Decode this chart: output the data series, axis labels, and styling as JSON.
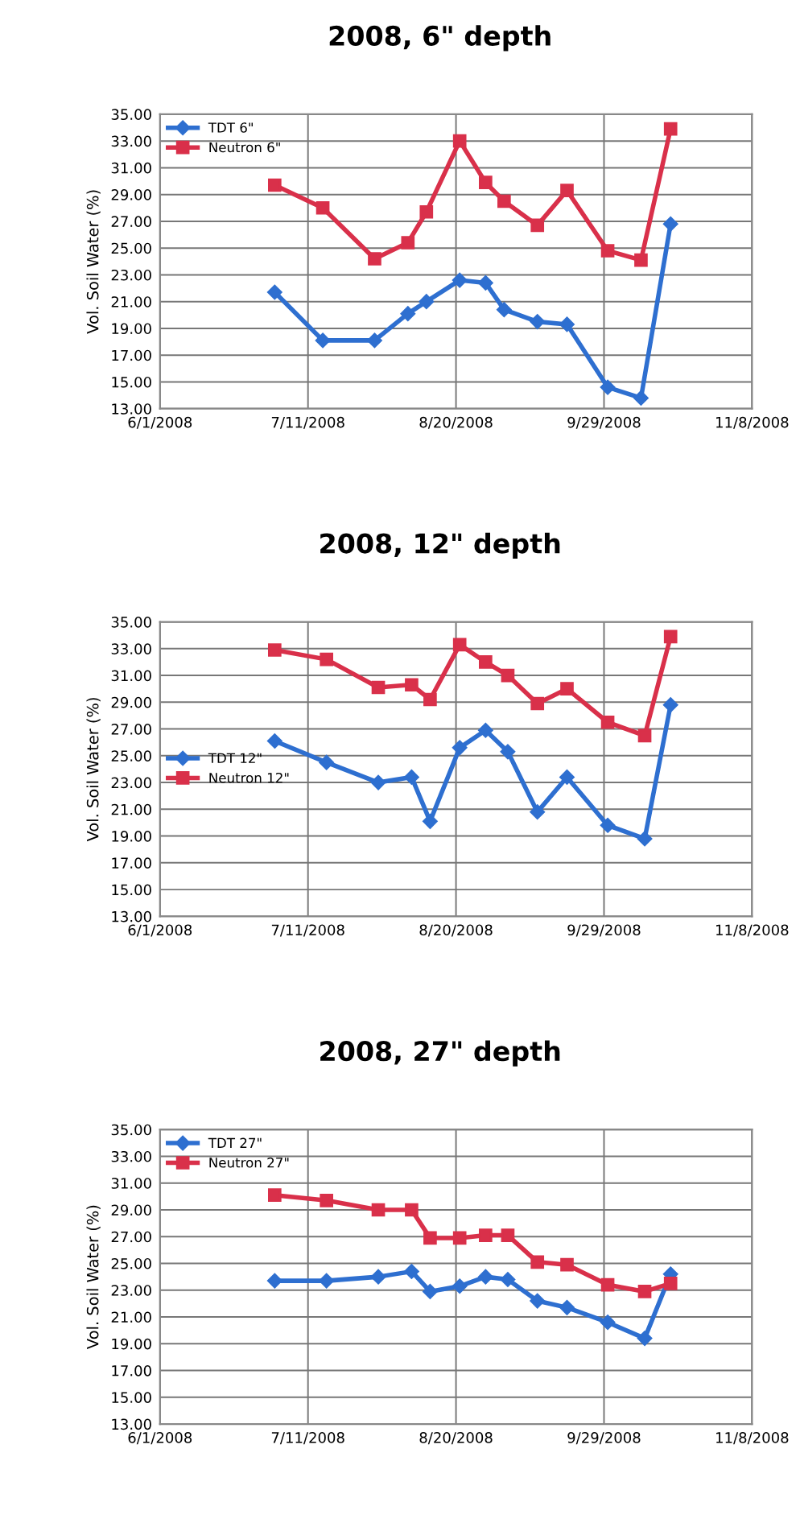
{
  "chart_data": [
    {
      "type": "line",
      "title": "2008, 6\" depth",
      "ylabel": "Vol. Soil Water (%)",
      "x": [
        "2008-07-02",
        "2008-07-15",
        "2008-07-29",
        "2008-08-07",
        "2008-08-12",
        "2008-08-21",
        "2008-08-28",
        "2008-09-02",
        "2008-09-11",
        "2008-09-19",
        "2008-09-30",
        "2008-10-09",
        "2008-10-17"
      ],
      "series": [
        {
          "name": "TDT 6\"",
          "color": "#2e6fd0",
          "marker": "diamond",
          "values": [
            21.7,
            18.1,
            18.1,
            20.1,
            21.0,
            22.6,
            22.4,
            20.4,
            19.5,
            19.3,
            14.6,
            13.8,
            26.8
          ]
        },
        {
          "name": "Neutron 6\"",
          "color": "#d9304a",
          "marker": "square",
          "values": [
            29.7,
            28.0,
            24.2,
            25.4,
            27.7,
            33.0,
            29.9,
            28.5,
            26.7,
            29.3,
            24.8,
            24.1,
            33.9
          ]
        }
      ],
      "xlim": [
        "2008-06-01",
        "2008-11-08"
      ],
      "xticks": [
        {
          "value": "2008-06-01",
          "label": "6/1/2008"
        },
        {
          "value": "2008-07-11",
          "label": "7/11/2008"
        },
        {
          "value": "2008-08-20",
          "label": "8/20/2008"
        },
        {
          "value": "2008-09-29",
          "label": "9/29/2008"
        },
        {
          "value": "2008-11-08",
          "label": "11/8/2008"
        }
      ],
      "ylim": [
        13,
        35
      ],
      "yticks": [
        {
          "value": 13,
          "label": "13.00"
        },
        {
          "value": 15,
          "label": "15.00"
        },
        {
          "value": 17,
          "label": "17.00"
        },
        {
          "value": 19,
          "label": "19.00"
        },
        {
          "value": 21,
          "label": "21.00"
        },
        {
          "value": 23,
          "label": "23.00"
        },
        {
          "value": 25,
          "label": "25.00"
        },
        {
          "value": 27,
          "label": "27.00"
        },
        {
          "value": 29,
          "label": "29.00"
        },
        {
          "value": 31,
          "label": "31.00"
        },
        {
          "value": 33,
          "label": "33.00"
        },
        {
          "value": 35,
          "label": "35.00"
        }
      ],
      "grid": true,
      "legend": "top left",
      "line_style": "solid"
    },
    {
      "type": "line",
      "title": "2008, 12\" depth",
      "ylabel": "Vol. Soil Water (%)",
      "x": [
        "2008-07-02",
        "2008-07-16",
        "2008-07-30",
        "2008-08-08",
        "2008-08-13",
        "2008-08-21",
        "2008-08-28",
        "2008-09-03",
        "2008-09-11",
        "2008-09-19",
        "2008-09-30",
        "2008-10-10",
        "2008-10-17"
      ],
      "series": [
        {
          "name": "TDT 12\"",
          "color": "#2e6fd0",
          "marker": "diamond",
          "values": [
            26.1,
            24.5,
            23.0,
            23.4,
            20.1,
            25.6,
            26.9,
            25.3,
            20.8,
            23.4,
            19.8,
            18.8,
            28.8
          ]
        },
        {
          "name": "Neutron 12\"",
          "color": "#d9304a",
          "marker": "square",
          "values": [
            32.9,
            32.2,
            30.1,
            30.3,
            29.2,
            33.3,
            32.0,
            31.0,
            28.9,
            30.0,
            27.5,
            26.5,
            33.9
          ]
        }
      ],
      "xlim": [
        "2008-06-01",
        "2008-11-08"
      ],
      "xticks": [
        {
          "value": "2008-06-01",
          "label": "6/1/2008"
        },
        {
          "value": "2008-07-11",
          "label": "7/11/2008"
        },
        {
          "value": "2008-08-20",
          "label": "8/20/2008"
        },
        {
          "value": "2008-09-29",
          "label": "9/29/2008"
        },
        {
          "value": "2008-11-08",
          "label": "11/8/2008"
        }
      ],
      "ylim": [
        13,
        35
      ],
      "yticks": [
        {
          "value": 13,
          "label": "13.00"
        },
        {
          "value": 15,
          "label": "15.00"
        },
        {
          "value": 17,
          "label": "17.00"
        },
        {
          "value": 19,
          "label": "19.00"
        },
        {
          "value": 21,
          "label": "21.00"
        },
        {
          "value": 23,
          "label": "23.00"
        },
        {
          "value": 25,
          "label": "25.00"
        },
        {
          "value": 27,
          "label": "27.00"
        },
        {
          "value": 29,
          "label": "29.00"
        },
        {
          "value": 31,
          "label": "31.00"
        },
        {
          "value": 33,
          "label": "33.00"
        },
        {
          "value": 35,
          "label": "35.00"
        }
      ],
      "grid": true,
      "legend": "left",
      "line_style": "solid"
    },
    {
      "type": "line",
      "title": "2008, 27\" depth",
      "ylabel": "Vol. Soil Water (%)",
      "x": [
        "2008-07-02",
        "2008-07-16",
        "2008-07-30",
        "2008-08-08",
        "2008-08-13",
        "2008-08-21",
        "2008-08-28",
        "2008-09-03",
        "2008-09-11",
        "2008-09-19",
        "2008-09-30",
        "2008-10-10",
        "2008-10-17"
      ],
      "series": [
        {
          "name": "TDT 27\"",
          "color": "#2e6fd0",
          "marker": "diamond",
          "values": [
            23.7,
            23.7,
            24.0,
            24.4,
            22.9,
            23.3,
            24.0,
            23.8,
            22.2,
            21.7,
            20.6,
            19.4,
            24.2
          ]
        },
        {
          "name": "Neutron 27\"",
          "color": "#d9304a",
          "marker": "square",
          "values": [
            30.1,
            29.7,
            29.0,
            29.0,
            26.9,
            26.9,
            27.1,
            27.1,
            25.1,
            24.9,
            23.4,
            22.9,
            23.5
          ]
        }
      ],
      "xlim": [
        "2008-06-01",
        "2008-11-08"
      ],
      "xticks": [
        {
          "value": "2008-06-01",
          "label": "6/1/2008"
        },
        {
          "value": "2008-07-11",
          "label": "7/11/2008"
        },
        {
          "value": "2008-08-20",
          "label": "8/20/2008"
        },
        {
          "value": "2008-09-29",
          "label": "9/29/2008"
        },
        {
          "value": "2008-11-08",
          "label": "11/8/2008"
        }
      ],
      "ylim": [
        13,
        35
      ],
      "yticks": [
        {
          "value": 13,
          "label": "13.00"
        },
        {
          "value": 15,
          "label": "15.00"
        },
        {
          "value": 17,
          "label": "17.00"
        },
        {
          "value": 19,
          "label": "19.00"
        },
        {
          "value": 21,
          "label": "21.00"
        },
        {
          "value": 23,
          "label": "23.00"
        },
        {
          "value": 25,
          "label": "25.00"
        },
        {
          "value": 27,
          "label": "27.00"
        },
        {
          "value": 29,
          "label": "29.00"
        },
        {
          "value": 31,
          "label": "31.00"
        },
        {
          "value": 33,
          "label": "33.00"
        },
        {
          "value": 35,
          "label": "35.00"
        }
      ],
      "grid": true,
      "legend": "top left",
      "line_style": "solid"
    }
  ]
}
